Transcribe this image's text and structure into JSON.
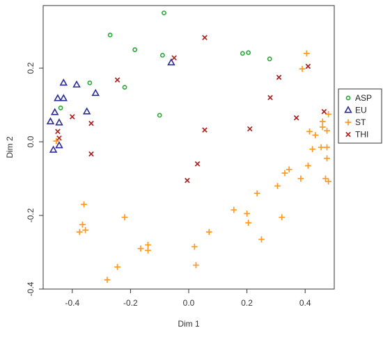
{
  "chart_data": {
    "type": "scatter",
    "title": "",
    "xlabel": "Dim 1",
    "ylabel": "Dim 2",
    "xlim": [
      -0.5,
      0.5
    ],
    "ylim": [
      -0.4,
      0.37
    ],
    "x_ticks": [
      -0.4,
      -0.2,
      0.0,
      0.2,
      0.4
    ],
    "x_tick_labels": [
      "-0.4",
      "-0.2",
      "0.0",
      "0.2",
      "0.4"
    ],
    "y_ticks": [
      -0.4,
      -0.2,
      0.0,
      0.2
    ],
    "y_tick_labels": [
      "-0.4",
      "-0.2",
      "0.0",
      "0.2"
    ],
    "grid": false,
    "legend": {
      "position": "right"
    },
    "series": [
      {
        "name": "ASP",
        "marker": "circle",
        "color": "#22aa33",
        "points": [
          [
            -0.085,
            0.35
          ],
          [
            -0.27,
            0.29
          ],
          [
            -0.185,
            0.25
          ],
          [
            -0.09,
            0.235
          ],
          [
            -0.34,
            0.16
          ],
          [
            -0.22,
            0.148
          ],
          [
            -0.1,
            0.072
          ],
          [
            0.185,
            0.24
          ],
          [
            0.205,
            0.242
          ],
          [
            0.278,
            0.225
          ],
          [
            -0.44,
            0.092
          ]
        ]
      },
      {
        "name": "EU",
        "marker": "triangle",
        "color": "#2b2b99",
        "points": [
          [
            -0.43,
            0.16
          ],
          [
            -0.385,
            0.155
          ],
          [
            -0.45,
            0.118
          ],
          [
            -0.43,
            0.118
          ],
          [
            -0.32,
            0.132
          ],
          [
            -0.35,
            0.082
          ],
          [
            -0.46,
            0.08
          ],
          [
            -0.475,
            0.055
          ],
          [
            -0.445,
            0.052
          ],
          [
            -0.465,
            -0.022
          ],
          [
            -0.445,
            -0.01
          ],
          [
            -0.06,
            0.215
          ]
        ]
      },
      {
        "name": "ST",
        "marker": "plus",
        "color": "#ff9922",
        "points": [
          [
            0.405,
            0.24
          ],
          [
            0.39,
            0.198
          ],
          [
            0.48,
            0.075
          ],
          [
            0.46,
            0.055
          ],
          [
            0.46,
            0.04
          ],
          [
            0.475,
            0.03
          ],
          [
            0.415,
            0.028
          ],
          [
            0.435,
            0.018
          ],
          [
            0.475,
            -0.015
          ],
          [
            0.455,
            -0.015
          ],
          [
            0.425,
            -0.02
          ],
          [
            0.475,
            -0.045
          ],
          [
            0.345,
            -0.075
          ],
          [
            0.33,
            -0.085
          ],
          [
            0.41,
            -0.065
          ],
          [
            0.385,
            -0.1
          ],
          [
            0.47,
            -0.1
          ],
          [
            0.48,
            -0.108
          ],
          [
            0.305,
            -0.12
          ],
          [
            0.235,
            -0.14
          ],
          [
            0.155,
            -0.185
          ],
          [
            0.2,
            -0.195
          ],
          [
            0.205,
            -0.22
          ],
          [
            0.32,
            -0.205
          ],
          [
            0.07,
            -0.245
          ],
          [
            0.25,
            -0.265
          ],
          [
            -0.36,
            -0.17
          ],
          [
            -0.22,
            -0.205
          ],
          [
            -0.365,
            -0.225
          ],
          [
            -0.355,
            -0.24
          ],
          [
            -0.375,
            -0.245
          ],
          [
            -0.165,
            -0.29
          ],
          [
            -0.14,
            -0.28
          ],
          [
            -0.14,
            -0.295
          ],
          [
            0.02,
            -0.285
          ],
          [
            0.025,
            -0.335
          ],
          [
            -0.245,
            -0.34
          ],
          [
            -0.28,
            -0.375
          ],
          [
            -0.455,
            0.002
          ]
        ]
      },
      {
        "name": "THI",
        "marker": "x",
        "color": "#aa2222",
        "points": [
          [
            0.055,
            0.283
          ],
          [
            -0.05,
            0.228
          ],
          [
            -0.245,
            0.168
          ],
          [
            0.31,
            0.175
          ],
          [
            0.41,
            0.205
          ],
          [
            0.28,
            0.12
          ],
          [
            -0.4,
            0.068
          ],
          [
            -0.335,
            0.05
          ],
          [
            0.465,
            0.082
          ],
          [
            0.37,
            0.065
          ],
          [
            0.21,
            0.035
          ],
          [
            0.055,
            0.032
          ],
          [
            -0.45,
            0.028
          ],
          [
            -0.445,
            0.01
          ],
          [
            -0.335,
            -0.033
          ],
          [
            0.03,
            -0.06
          ],
          [
            -0.005,
            -0.105
          ]
        ]
      }
    ]
  }
}
